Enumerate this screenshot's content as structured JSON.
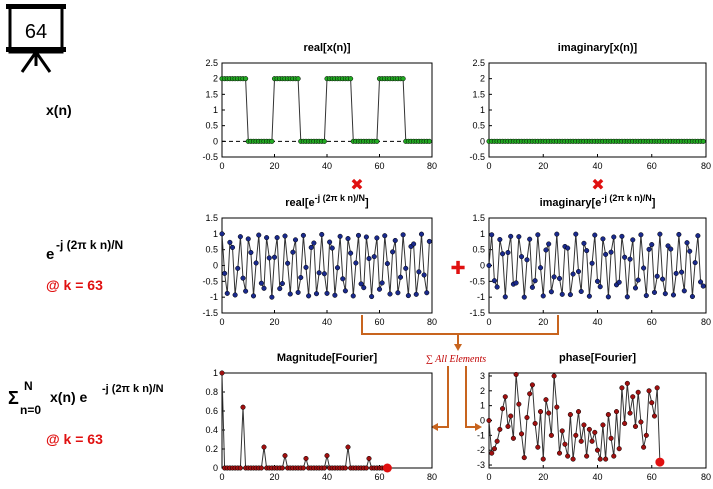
{
  "badge": {
    "number": "64"
  },
  "row_labels": {
    "xn": "x(n)",
    "exp_base": "e",
    "exp_sup": "-j (2π k n)/N",
    "exp_at": "@ k = 63",
    "sum_sigma": "Σ",
    "sum_sup": "N",
    "sum_sub": "n=0",
    "sum_body": "x(n) e",
    "sum_sup2": "-j (2π k n)/N",
    "sum_at": "@ k = 63"
  },
  "operators": {
    "times": "✖",
    "plus": "✚",
    "sum_label": "∑ All Elements"
  },
  "colors": {
    "green": "#22aa22",
    "navy": "#1a2a8c",
    "darkred": "#a01010",
    "red": "#e01010",
    "orange": "#c8641e"
  },
  "chart_data": [
    {
      "type": "line",
      "title": "real[x(n)]",
      "x": [
        0,
        1,
        2,
        3,
        4,
        5,
        6,
        7,
        8,
        9,
        10,
        11,
        12,
        13,
        14,
        15,
        16,
        17,
        18,
        19,
        20,
        21,
        22,
        23,
        24,
        25,
        26,
        27,
        28,
        29,
        30,
        31,
        32,
        33,
        34,
        35,
        36,
        37,
        38,
        39,
        40,
        41,
        42,
        43,
        44,
        45,
        46,
        47,
        48,
        49,
        50,
        51,
        52,
        53,
        54,
        55,
        56,
        57,
        58,
        59,
        60,
        61,
        62,
        63,
        64,
        65,
        66,
        67,
        68,
        69,
        70,
        71,
        72,
        73,
        74,
        75,
        76,
        77,
        78,
        79
      ],
      "y": [
        2,
        2,
        2,
        2,
        2,
        2,
        2,
        2,
        2,
        2,
        0,
        0,
        0,
        0,
        0,
        0,
        0,
        0,
        0,
        0,
        2,
        2,
        2,
        2,
        2,
        2,
        2,
        2,
        2,
        2,
        0,
        0,
        0,
        0,
        0,
        0,
        0,
        0,
        0,
        0,
        2,
        2,
        2,
        2,
        2,
        2,
        2,
        2,
        2,
        2,
        0,
        0,
        0,
        0,
        0,
        0,
        0,
        0,
        0,
        0,
        2,
        2,
        2,
        2,
        2,
        2,
        2,
        2,
        2,
        2,
        0,
        0,
        0,
        0,
        0,
        0,
        0,
        0,
        0,
        0
      ],
      "xlim": [
        0,
        80
      ],
      "ylim": [
        -0.5,
        2.5
      ],
      "xticks": [
        "0",
        "20",
        "40",
        "60",
        "80"
      ],
      "yticks": [
        "2.5",
        "2",
        "1.5",
        "1",
        "0.5",
        "0",
        "-0.5"
      ],
      "grid": false,
      "zero_line": true,
      "marker_color": "#22aa22"
    },
    {
      "type": "line",
      "title": "imaginary[x(n)]",
      "x": [
        0,
        1,
        2,
        3,
        4,
        5,
        6,
        7,
        8,
        9,
        10,
        11,
        12,
        13,
        14,
        15,
        16,
        17,
        18,
        19,
        20,
        21,
        22,
        23,
        24,
        25,
        26,
        27,
        28,
        29,
        30,
        31,
        32,
        33,
        34,
        35,
        36,
        37,
        38,
        39,
        40,
        41,
        42,
        43,
        44,
        45,
        46,
        47,
        48,
        49,
        50,
        51,
        52,
        53,
        54,
        55,
        56,
        57,
        58,
        59,
        60,
        61,
        62,
        63,
        64,
        65,
        66,
        67,
        68,
        69,
        70,
        71,
        72,
        73,
        74,
        75,
        76,
        77,
        78,
        79
      ],
      "y": [
        0,
        0,
        0,
        0,
        0,
        0,
        0,
        0,
        0,
        0,
        0,
        0,
        0,
        0,
        0,
        0,
        0,
        0,
        0,
        0,
        0,
        0,
        0,
        0,
        0,
        0,
        0,
        0,
        0,
        0,
        0,
        0,
        0,
        0,
        0,
        0,
        0,
        0,
        0,
        0,
        0,
        0,
        0,
        0,
        0,
        0,
        0,
        0,
        0,
        0,
        0,
        0,
        0,
        0,
        0,
        0,
        0,
        0,
        0,
        0,
        0,
        0,
        0,
        0,
        0,
        0,
        0,
        0,
        0,
        0,
        0,
        0,
        0,
        0,
        0,
        0,
        0,
        0,
        0,
        0
      ],
      "xlim": [
        0,
        80
      ],
      "ylim": [
        -0.5,
        2.5
      ],
      "xticks": [
        "0",
        "20",
        "40",
        "60",
        "80"
      ],
      "yticks": [
        "2.5",
        "2",
        "1.5",
        "1",
        "0.5",
        "0",
        "-0.5"
      ],
      "grid": false,
      "zero_line": false,
      "marker_color": "#22aa22"
    },
    {
      "type": "line",
      "title": "real[e",
      "title_sup": "-j (2π k n)/N",
      "title_end": "]",
      "x": [
        0,
        1,
        2,
        3,
        4,
        5,
        6,
        7,
        8,
        9,
        10,
        11,
        12,
        13,
        14,
        15,
        16,
        17,
        18,
        19,
        20,
        21,
        22,
        23,
        24,
        25,
        26,
        27,
        28,
        29,
        30,
        31,
        32,
        33,
        34,
        35,
        36,
        37,
        38,
        39,
        40,
        41,
        42,
        43,
        44,
        45,
        46,
        47,
        48,
        49,
        50,
        51,
        52,
        53,
        54,
        55,
        56,
        57,
        58,
        59,
        60,
        61,
        62,
        63,
        64,
        65,
        66,
        67,
        68,
        69,
        70,
        71,
        72,
        73,
        74,
        75,
        76,
        77,
        78,
        79
      ],
      "y": [
        1.0,
        -0.25,
        -0.88,
        0.73,
        0.57,
        -0.93,
        -0.09,
        0.91,
        -0.4,
        -0.81,
        0.84,
        0.41,
        -0.96,
        0.08,
        0.96,
        -0.56,
        -0.72,
        0.88,
        0.24,
        -1.0,
        0.26,
        0.88,
        -0.73,
        -0.57,
        0.93,
        0.07,
        -0.9,
        0.42,
        0.81,
        -0.85,
        -0.38,
        0.95,
        -0.06,
        -0.96,
        0.57,
        0.71,
        -0.89,
        -0.23,
        0.98,
        -0.26,
        -0.88,
        0.74,
        0.55,
        -0.94,
        -0.07,
        0.92,
        -0.42,
        -0.8,
        0.85,
        0.39,
        -0.96,
        0.08,
        0.95,
        -0.58,
        -0.7,
        0.9,
        0.22,
        -0.98,
        0.28,
        0.87,
        -0.75,
        -0.55,
        0.94,
        0.06,
        -0.9,
        0.43,
        0.79,
        -0.86,
        -0.37,
        0.97,
        -0.09,
        -0.95,
        0.6,
        0.68,
        -0.91,
        -0.2,
        0.99,
        -0.3,
        -0.86,
        0.76
      ],
      "xlim": [
        0,
        80
      ],
      "ylim": [
        -1.5,
        1.5
      ],
      "xticks": [
        "0",
        "20",
        "40",
        "60",
        "80"
      ],
      "yticks": [
        "1.5",
        "1",
        "0.5",
        "0",
        "-0.5",
        "-1",
        "-1.5"
      ],
      "grid": false,
      "zero_line": false,
      "marker_color": "#1a2a8c"
    },
    {
      "type": "line",
      "title": "imaginary[e",
      "title_sup": "-j (2π k n)/N",
      "title_end": "]",
      "x": [
        0,
        1,
        2,
        3,
        4,
        5,
        6,
        7,
        8,
        9,
        10,
        11,
        12,
        13,
        14,
        15,
        16,
        17,
        18,
        19,
        20,
        21,
        22,
        23,
        24,
        25,
        26,
        27,
        28,
        29,
        30,
        31,
        32,
        33,
        34,
        35,
        36,
        37,
        38,
        39,
        40,
        41,
        42,
        43,
        44,
        45,
        46,
        47,
        48,
        49,
        50,
        51,
        52,
        53,
        54,
        55,
        56,
        57,
        58,
        59,
        60,
        61,
        62,
        63,
        64,
        65,
        66,
        67,
        68,
        69,
        70,
        71,
        72,
        73,
        74,
        75,
        76,
        77,
        78,
        79
      ],
      "y": [
        0.0,
        0.97,
        -0.48,
        -0.68,
        0.82,
        0.37,
        -0.99,
        0.41,
        0.92,
        -0.59,
        -0.55,
        0.91,
        0.28,
        -1.0,
        0.18,
        0.83,
        -0.69,
        -0.48,
        0.97,
        -0.07,
        -0.96,
        0.49,
        0.68,
        -0.83,
        -0.36,
        0.99,
        -0.41,
        -0.91,
        0.6,
        0.55,
        -0.92,
        -0.27,
        0.99,
        -0.19,
        -0.82,
        0.7,
        0.47,
        -0.97,
        0.07,
        0.96,
        -0.5,
        -0.67,
        0.84,
        0.35,
        -0.99,
        0.42,
        0.9,
        -0.61,
        -0.53,
        0.92,
        0.26,
        -0.99,
        0.2,
        0.81,
        -0.71,
        -0.46,
        0.97,
        -0.08,
        -0.95,
        0.51,
        0.66,
        -0.85,
        -0.34,
        0.99,
        -0.43,
        -0.89,
        0.62,
        0.52,
        -0.93,
        -0.25,
        0.98,
        -0.21,
        -0.8,
        0.72,
        0.45,
        -0.98,
        0.09,
        0.94,
        -0.52,
        -0.65
      ],
      "xlim": [
        0,
        80
      ],
      "ylim": [
        -1.5,
        1.5
      ],
      "xticks": [
        "0",
        "20",
        "40",
        "60",
        "80"
      ],
      "yticks": [
        "1.5",
        "1",
        "0.5",
        "0",
        "-0.5",
        "-1",
        "-1.5"
      ],
      "grid": false,
      "zero_line": false,
      "marker_color": "#1a2a8c"
    },
    {
      "type": "line",
      "title": "Magnitude[Fourier]",
      "x": [
        0,
        1,
        2,
        3,
        4,
        5,
        6,
        7,
        8,
        9,
        10,
        11,
        12,
        13,
        14,
        15,
        16,
        17,
        18,
        19,
        20,
        21,
        22,
        23,
        24,
        25,
        26,
        27,
        28,
        29,
        30,
        31,
        32,
        33,
        34,
        35,
        36,
        37,
        38,
        39,
        40,
        41,
        42,
        43,
        44,
        45,
        46,
        47,
        48,
        49,
        50,
        51,
        52,
        53,
        54,
        55,
        56,
        57,
        58,
        59,
        60,
        61,
        62,
        63
      ],
      "y": [
        1.0,
        0,
        0,
        0,
        0,
        0,
        0,
        0,
        0.64,
        0,
        0,
        0,
        0,
        0,
        0,
        0,
        0.22,
        0,
        0,
        0,
        0,
        0,
        0,
        0,
        0.13,
        0,
        0,
        0,
        0,
        0,
        0,
        0,
        0.1,
        0,
        0,
        0,
        0,
        0,
        0,
        0,
        0.13,
        0,
        0,
        0,
        0,
        0,
        0,
        0,
        0.22,
        0,
        0,
        0,
        0,
        0,
        0,
        0,
        0.1,
        0,
        0,
        0,
        0,
        0,
        0,
        0
      ],
      "xlim": [
        0,
        80
      ],
      "ylim": [
        0,
        1
      ],
      "xticks": [
        "0",
        "20",
        "40",
        "60",
        "80"
      ],
      "yticks": [
        "1",
        "0.8",
        "0.6",
        "0.4",
        "0.2",
        "0"
      ],
      "grid": false,
      "zero_line": false,
      "marker_color": "#a01010",
      "highlight": {
        "x": 63,
        "y": 0
      }
    },
    {
      "type": "line",
      "title": "phase[Fourier]",
      "x": [
        0,
        1,
        2,
        3,
        4,
        5,
        6,
        7,
        8,
        9,
        10,
        11,
        12,
        13,
        14,
        15,
        16,
        17,
        18,
        19,
        20,
        21,
        22,
        23,
        24,
        25,
        26,
        27,
        28,
        29,
        30,
        31,
        32,
        33,
        34,
        35,
        36,
        37,
        38,
        39,
        40,
        41,
        42,
        43,
        44,
        45,
        46,
        47,
        48,
        49,
        50,
        51,
        52,
        53,
        54,
        55,
        56,
        57,
        58,
        59,
        60,
        61,
        62,
        63
      ],
      "y": [
        0.0,
        -2.2,
        -1.9,
        -1.4,
        -0.6,
        0.8,
        1.6,
        -0.4,
        0.3,
        -1.2,
        3.1,
        1.1,
        -0.9,
        -2.5,
        0.2,
        1.8,
        2.4,
        -0.2,
        -1.8,
        0.6,
        -2.6,
        1.4,
        0.5,
        -1.0,
        3.0,
        0.9,
        -2.2,
        -0.7,
        -1.6,
        -2.4,
        0.4,
        -2.6,
        -1.0,
        0.6,
        -1.4,
        -0.3,
        -2.4,
        -0.6,
        -1.4,
        -0.8,
        -2.0,
        -2.6,
        -0.3,
        -2.6,
        0.4,
        -1.2,
        -2.4,
        0.6,
        -1.9,
        2.2,
        -0.2,
        2.5,
        0.5,
        1.6,
        -0.4,
        1.9,
        -0.1,
        -1.8,
        -1.0,
        2.0,
        1.2,
        0.3,
        2.2,
        -2.8
      ],
      "xlim": [
        0,
        80
      ],
      "ylim": [
        -3.2,
        3.2
      ],
      "xticks": [
        "0",
        "20",
        "40",
        "60",
        "80"
      ],
      "yticks": [
        "3",
        "2",
        "1",
        "0",
        "-1",
        "-2",
        "-3"
      ],
      "grid": false,
      "zero_line": false,
      "marker_color": "#a01010",
      "highlight": {
        "x": 63,
        "y": -2.8
      }
    }
  ]
}
